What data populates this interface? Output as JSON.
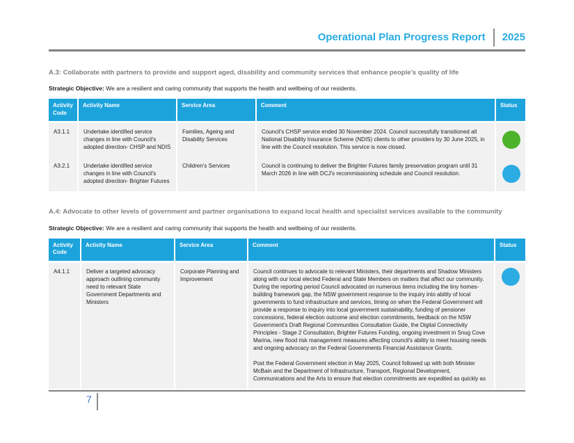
{
  "header": {
    "title": "Operational Plan Progress Report",
    "year": "2025"
  },
  "footer": {
    "page_number": "7"
  },
  "colors": {
    "accent_cyan": "#29ABE2",
    "table_header_bg": "#1CA3DC",
    "status_green": "#4DB32A",
    "status_blue": "#2BACE2"
  },
  "sections": [
    {
      "heading": "A.3: Collaborate with partners to provide and support aged, disability and community services that enhance people’s quality of life",
      "objective_label": "Strategic Objective:",
      "objective_text": "We are a resilient and caring community that supports the health and wellbeing of our residents.",
      "table": {
        "columns": [
          "Activity Code",
          "Activity Name",
          "Service Area",
          "Comment",
          "Status"
        ],
        "rows": [
          {
            "code": "A3.1.1",
            "name": "Undertake identified service changes in line with Council's adopted direction- CHSP and NDIS",
            "service_area": "Families, Ageing and Disability Services",
            "comment": [
              "Council's CHSP service ended 30 November 2024. Council successfully transitioned all National Disability Insurance Scheme (NDIS) clients to other providers by 30 June 2025, in line with the Council resolution. This service is now closed."
            ],
            "status": "green",
            "status_color": "#4DB32A"
          },
          {
            "code": "A3.2.1",
            "name": "Undertake identified service changes in line with Council's adopted direction- Brighter Futures",
            "service_area": "Children’s Services",
            "comment": [
              "Council is continuing to deliver the Brighter Futures family preservation program until 31 March 2026 in line with DCJ's recommissioning schedule and Council resolution."
            ],
            "status": "blue",
            "status_color": "#2BACE2"
          }
        ]
      }
    },
    {
      "heading": "A.4: Advocate to other levels of government and partner organisations to expand local health and specialist services available to the community",
      "objective_label": "Strategic Objective:",
      "objective_text": "We are a resilient and caring community that supports the health and wellbeing of our residents.",
      "table": {
        "columns": [
          "Activity Code",
          "Activity Name",
          "Service Area",
          "Comment",
          "Status"
        ],
        "rows": [
          {
            "code": "A4.1.1",
            "name": "Deliver a targeted advocacy approach outlining community need to relevant State Government Departments and Ministers",
            "service_area": "Corporate Planning and Improvement",
            "comment": [
              "Council continues to advocate to relevant Ministers, their departments and Shadow Ministers along with our local elected Federal and State Members on matters that affect our community. During the reporting period Council advocated on numerous items including the tiny homes-building framework gap, the NSW government response to the inquiry into ability of local governments to fund infrastructure and services, timing on when the Federal Government will provide a response to inquiry into local government sustainability, funding of pensioner concessions, federal election outcome and election commitments, feedback on the NSW Government's Draft Regional Communities Consultation Guide, the Digital Connectivity Principles - Stage 2 Consultation, Brighter Futures Funding, ongoing investment in Snug Cove Marina, new flood risk management measures affecting council's ability to meet housing needs and ongoing advocacy on the Federal Governments Financial Assistance Grants.",
              "Post the Federal Government election in May 2025, Council followed up with both Minister McBain and the Department of Infrastructure, Transport, Regional Development, Communications and the Arts to ensure that election commitments are expedited as quickly as"
            ],
            "status": "blue",
            "status_color": "#2BACE2"
          }
        ]
      }
    }
  ]
}
